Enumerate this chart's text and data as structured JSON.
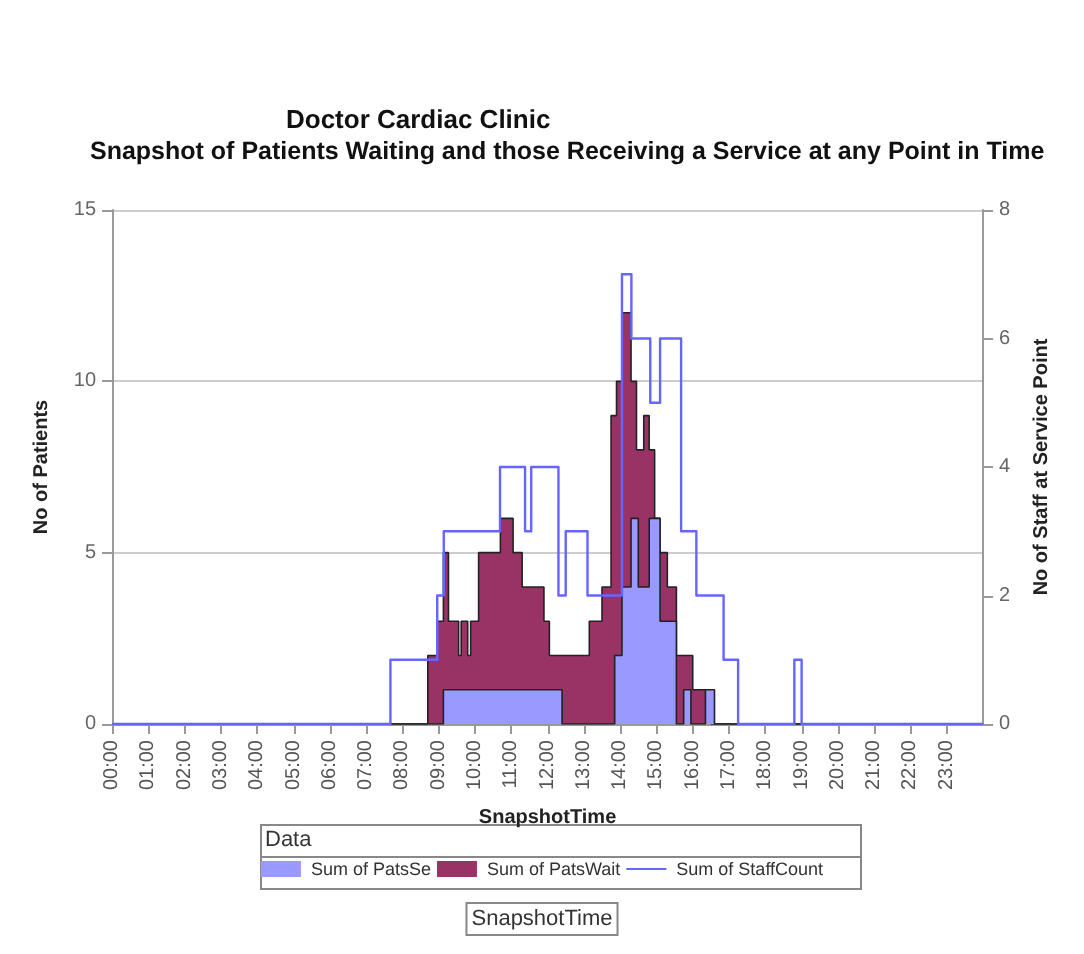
{
  "chart_data": {
    "type": "step",
    "title": "Doctor Cardiac Clinic",
    "subtitle": "Snapshot of Patients Waiting and those Receiving a Service at any Point in Time",
    "xlabel": "SnapshotTime",
    "ylabel": "No of Patients",
    "y2label": "No of Staff at Service Point",
    "legend_title": "Data",
    "annotations": [
      "SnapshotTime"
    ],
    "xlim": [
      0,
      24
    ],
    "xticks": [
      {
        "value": 0,
        "label": "00:00"
      },
      {
        "value": 1,
        "label": "01:00"
      },
      {
        "value": 2,
        "label": "02:00"
      },
      {
        "value": 3,
        "label": "03:00"
      },
      {
        "value": 4,
        "label": "04:00"
      },
      {
        "value": 5,
        "label": "05:00"
      },
      {
        "value": 6,
        "label": "06:00"
      },
      {
        "value": 7,
        "label": "07:00"
      },
      {
        "value": 8,
        "label": "08:00"
      },
      {
        "value": 9,
        "label": "09:00"
      },
      {
        "value": 10,
        "label": "10:00"
      },
      {
        "value": 11,
        "label": "11:00"
      },
      {
        "value": 12,
        "label": "12:00"
      },
      {
        "value": 13,
        "label": "13:00"
      },
      {
        "value": 14,
        "label": "14:00"
      },
      {
        "value": 15,
        "label": "15:00"
      },
      {
        "value": 16,
        "label": "16:00"
      },
      {
        "value": 17,
        "label": "17:00"
      },
      {
        "value": 18,
        "label": "18:00"
      },
      {
        "value": 19,
        "label": "19:00"
      },
      {
        "value": 20,
        "label": "20:00"
      },
      {
        "value": 21,
        "label": "21:00"
      },
      {
        "value": 22,
        "label": "22:00"
      },
      {
        "value": 23,
        "label": "23:00"
      }
    ],
    "ylim": [
      0,
      15
    ],
    "yticks": [
      0,
      5,
      10,
      15
    ],
    "y2lim": [
      0,
      8
    ],
    "y2ticks": [
      0,
      2,
      4,
      6,
      8
    ],
    "grid": "y",
    "legend": "bottom",
    "series": [
      {
        "name": "Sum of PatsSe",
        "type": "area",
        "color": "#9999ff",
        "x": [
          0,
          9.13,
          12.4,
          13.85,
          14.05,
          14.3,
          14.5,
          14.8,
          15.1,
          15.55,
          15.75,
          15.95,
          16.35,
          16.6,
          24
        ],
        "values": [
          0,
          1,
          0,
          2,
          4,
          6,
          4,
          6,
          3,
          0,
          1,
          0,
          1,
          0,
          0
        ]
      },
      {
        "name": "Sum of PatsWait",
        "type": "area",
        "color": "#993366",
        "x": [
          0,
          8.7,
          8.95,
          9.13,
          9.27,
          9.55,
          9.62,
          9.8,
          9.88,
          10.1,
          10.7,
          11.05,
          11.3,
          11.9,
          12.05,
          13.15,
          13.5,
          13.75,
          13.9,
          14.05,
          14.3,
          14.45,
          14.65,
          14.8,
          14.95,
          15.1,
          15.3,
          15.55,
          16.0,
          16.5,
          24
        ],
        "values": [
          0,
          2,
          3,
          5,
          3,
          2,
          3,
          2,
          3,
          5,
          6,
          5,
          4,
          3,
          2,
          3,
          4,
          9,
          10,
          12,
          10,
          8,
          9,
          8,
          6,
          5,
          4,
          2,
          1,
          0,
          0
        ]
      },
      {
        "name": "Sum of StaffCount",
        "axis": "y2",
        "color": "#6666ff",
        "x": [
          0,
          7.67,
          8.96,
          9.14,
          10.69,
          11.38,
          11.55,
          12.15,
          12.3,
          12.5,
          13.1,
          14.05,
          14.31,
          14.83,
          15.1,
          15.68,
          16.1,
          16.85,
          17.25,
          18.8,
          19.0,
          24
        ],
        "values": [
          0,
          1,
          2,
          3,
          4,
          3,
          4,
          4,
          2,
          3,
          2,
          7,
          6,
          5,
          6,
          3,
          2,
          1,
          0,
          1,
          0,
          0
        ]
      }
    ]
  }
}
